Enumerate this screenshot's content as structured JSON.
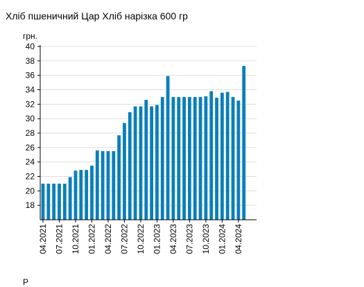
{
  "title": "Хліб пшеничний Цар Хліб нарізка 600 гр",
  "chart_data": {
    "type": "bar",
    "title": "Хліб пшеничний Цар Хліб нарізка 600 гр",
    "ylabel": "грн.",
    "xlabel": "",
    "ylim": [
      16,
      40
    ],
    "yticks": [
      18,
      20,
      22,
      24,
      26,
      28,
      30,
      32,
      34,
      36,
      38,
      40
    ],
    "grid": true,
    "bar_color": "#0a7fba",
    "grid_color": "#dddddd",
    "x_tick_labels": [
      "04.2021",
      "07.2021",
      "10.2021",
      "01.2022",
      "04.2022",
      "07.2022",
      "10.2022",
      "01.2023",
      "04.2023",
      "07.2023",
      "10.2023",
      "01.2024",
      "04.2024"
    ],
    "x_tick_every": 3,
    "values": [
      21.0,
      21.0,
      21.0,
      21.0,
      21.0,
      21.9,
      22.8,
      22.9,
      22.9,
      23.5,
      25.6,
      25.5,
      25.5,
      25.5,
      27.7,
      29.4,
      30.9,
      31.7,
      31.7,
      32.6,
      31.7,
      31.9,
      33.0,
      35.9,
      33.0,
      33.0,
      33.0,
      33.0,
      33.0,
      33.0,
      33.1,
      33.8,
      32.9,
      33.6,
      33.7,
      33.0,
      32.5,
      37.3
    ]
  },
  "footer": {
    "text": "Р"
  }
}
